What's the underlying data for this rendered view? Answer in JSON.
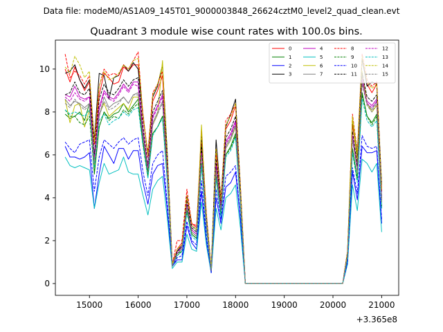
{
  "figure": {
    "suptitle": "Data file: modeM0/AS1A09_145T01_9000003848_26624cztM0_level2_quad_clean.evt",
    "offset_label": "+3.365e8"
  },
  "chart_data": {
    "type": "line",
    "title": "Quadrant 3 module wise count rates with 100.0s bins.",
    "xlabel": "",
    "ylabel": "",
    "x_offset": 336500000,
    "xlim": [
      14300,
      21350
    ],
    "ylim": [
      -0.55,
      11.35
    ],
    "xticks": [
      15000,
      16000,
      17000,
      18000,
      19000,
      20000,
      21000
    ],
    "xtick_labels": [
      "15000",
      "16000",
      "17000",
      "18000",
      "19000",
      "20000",
      "21000"
    ],
    "yticks": [
      0,
      2,
      4,
      6,
      8,
      10
    ],
    "ytick_labels": [
      "0",
      "2",
      "4",
      "6",
      "8",
      "10"
    ],
    "legend_position": "top-right",
    "grid": false,
    "x": [
      14500,
      14600,
      14700,
      14800,
      14900,
      15000,
      15100,
      15200,
      15300,
      15400,
      15500,
      15600,
      15700,
      15800,
      15900,
      16000,
      16100,
      16200,
      16300,
      16400,
      16500,
      16600,
      16700,
      16800,
      16900,
      17000,
      17100,
      17200,
      17300,
      17400,
      17500,
      17600,
      17700,
      17800,
      17900,
      18000,
      18100,
      18200,
      18300,
      18400,
      18500,
      18600,
      18700,
      18800,
      18900,
      19000,
      19100,
      19200,
      19300,
      19400,
      19500,
      19600,
      19700,
      19800,
      19900,
      20000,
      20100,
      20200,
      20300,
      20400,
      20500,
      20600,
      20700,
      20800,
      20900,
      21000
    ],
    "series": [
      {
        "name": "0",
        "color": "#ff0000",
        "dash": "solid",
        "values": [
          10.0,
          9.4,
          10.1,
          9.5,
          9.0,
          9.4,
          6.5,
          8.8,
          9.8,
          9.6,
          9.3,
          9.4,
          10.1,
          9.9,
          10.2,
          10.2,
          7.9,
          5.9,
          8.5,
          9.0,
          9.7,
          5.7,
          0.9,
          1.6,
          1.9,
          4.0,
          2.8,
          2.6,
          6.7,
          3.2,
          0.7,
          6.1,
          3.8,
          7.2,
          7.6,
          8.3,
          4.4,
          0.0,
          0.0,
          0.0,
          0.0,
          0.0,
          0.0,
          0.0,
          0.0,
          0.0,
          0.0,
          0.0,
          0.0,
          0.0,
          0.0,
          0.0,
          0.0,
          0.0,
          0.0,
          0.0,
          0.0,
          0.0,
          1.5,
          7.4,
          5.9,
          10.5,
          9.3,
          8.9,
          9.3,
          4.3
        ]
      },
      {
        "name": "1",
        "color": "#008000",
        "dash": "solid",
        "values": [
          7.9,
          7.7,
          7.8,
          8.0,
          7.6,
          8.4,
          5.1,
          7.3,
          8.0,
          7.7,
          7.9,
          8.0,
          8.4,
          8.0,
          8.3,
          8.6,
          6.6,
          5.0,
          7.0,
          7.3,
          7.8,
          4.8,
          0.8,
          1.4,
          1.5,
          3.4,
          2.3,
          2.1,
          5.6,
          2.7,
          0.6,
          5.0,
          3.3,
          6.0,
          6.4,
          7.0,
          3.7,
          0.0,
          0.0,
          0.0,
          0.0,
          0.0,
          0.0,
          0.0,
          0.0,
          0.0,
          0.0,
          0.0,
          0.0,
          0.0,
          0.0,
          0.0,
          0.0,
          0.0,
          0.0,
          0.0,
          0.0,
          0.0,
          1.2,
          6.3,
          4.9,
          8.9,
          7.8,
          7.5,
          7.9,
          3.6
        ]
      },
      {
        "name": "2",
        "color": "#0000ff",
        "dash": "solid",
        "values": [
          6.4,
          5.9,
          5.9,
          5.8,
          5.9,
          6.1,
          3.5,
          5.1,
          6.4,
          6.0,
          5.6,
          6.3,
          6.3,
          5.8,
          6.2,
          6.2,
          4.7,
          3.7,
          5.1,
          5.5,
          5.6,
          3.4,
          0.8,
          1.1,
          1.1,
          2.7,
          1.9,
          1.6,
          4.3,
          2.0,
          0.5,
          4.0,
          2.8,
          4.5,
          4.7,
          5.2,
          3.0,
          0.0,
          0.0,
          0.0,
          0.0,
          0.0,
          0.0,
          0.0,
          0.0,
          0.0,
          0.0,
          0.0,
          0.0,
          0.0,
          0.0,
          0.0,
          0.0,
          0.0,
          0.0,
          0.0,
          0.0,
          0.0,
          1.0,
          5.2,
          3.9,
          6.4,
          6.1,
          6.1,
          6.2,
          2.8
        ]
      },
      {
        "name": "3",
        "color": "#000000",
        "dash": "solid",
        "values": [
          9.8,
          9.9,
          10.2,
          9.5,
          9.1,
          9.5,
          6.7,
          9.8,
          9.7,
          8.6,
          9.6,
          9.7,
          10.2,
          9.9,
          10.3,
          10.0,
          7.8,
          6.0,
          8.7,
          9.2,
          10.2,
          6.0,
          0.9,
          1.5,
          1.8,
          4.1,
          2.7,
          2.5,
          6.9,
          3.2,
          0.7,
          6.7,
          3.9,
          7.3,
          7.9,
          8.6,
          4.5,
          0.0,
          0.0,
          0.0,
          0.0,
          0.0,
          0.0,
          0.0,
          0.0,
          0.0,
          0.0,
          0.0,
          0.0,
          0.0,
          0.0,
          0.0,
          0.0,
          0.0,
          0.0,
          0.0,
          0.0,
          0.0,
          1.5,
          7.6,
          6.0,
          10.5,
          9.2,
          9.4,
          9.3,
          4.6
        ]
      },
      {
        "name": "4",
        "color": "#bf00bf",
        "dash": "solid",
        "values": [
          8.8,
          8.7,
          9.2,
          8.7,
          8.6,
          8.7,
          5.9,
          8.2,
          9.0,
          8.7,
          8.6,
          8.9,
          9.3,
          9.0,
          9.4,
          9.4,
          7.1,
          5.4,
          7.8,
          8.3,
          8.8,
          5.3,
          0.9,
          1.5,
          1.7,
          3.7,
          2.5,
          2.3,
          6.2,
          2.9,
          0.7,
          5.6,
          3.5,
          6.6,
          7.0,
          7.6,
          4.0,
          0.0,
          0.0,
          0.0,
          0.0,
          0.0,
          0.0,
          0.0,
          0.0,
          0.0,
          0.0,
          0.0,
          0.0,
          0.0,
          0.0,
          0.0,
          0.0,
          0.0,
          0.0,
          0.0,
          0.0,
          0.0,
          1.4,
          6.9,
          5.4,
          9.6,
          8.5,
          8.3,
          8.6,
          3.9
        ]
      },
      {
        "name": "5",
        "color": "#00bfbf",
        "dash": "solid",
        "values": [
          5.9,
          5.5,
          5.4,
          5.5,
          5.4,
          5.3,
          3.5,
          4.7,
          5.6,
          5.1,
          5.2,
          5.3,
          5.9,
          5.2,
          5.1,
          5.1,
          4.1,
          3.2,
          4.4,
          4.8,
          5.0,
          3.0,
          0.7,
          1.0,
          1.0,
          2.3,
          1.6,
          1.5,
          3.8,
          1.8,
          0.5,
          3.5,
          2.5,
          4.0,
          4.2,
          4.6,
          2.6,
          0.0,
          0.0,
          0.0,
          0.0,
          0.0,
          0.0,
          0.0,
          0.0,
          0.0,
          0.0,
          0.0,
          0.0,
          0.0,
          0.0,
          0.0,
          0.0,
          0.0,
          0.0,
          0.0,
          0.0,
          0.0,
          0.9,
          4.6,
          3.4,
          5.8,
          5.6,
          5.2,
          5.6,
          2.4
        ]
      },
      {
        "name": "6",
        "color": "#bfbf00",
        "dash": "solid",
        "values": [
          8.6,
          7.5,
          8.3,
          8.4,
          7.3,
          8.1,
          5.5,
          7.9,
          8.4,
          7.8,
          8.0,
          8.2,
          8.4,
          8.1,
          8.7,
          8.7,
          6.9,
          5.3,
          7.4,
          7.9,
          10.4,
          5.0,
          0.9,
          1.4,
          1.6,
          3.6,
          2.4,
          2.2,
          7.4,
          2.8,
          0.6,
          5.3,
          3.4,
          6.3,
          6.7,
          7.3,
          3.9,
          0.0,
          0.0,
          0.0,
          0.0,
          0.0,
          0.0,
          0.0,
          0.0,
          0.0,
          0.0,
          0.0,
          0.0,
          0.0,
          0.0,
          0.0,
          0.0,
          0.0,
          0.0,
          0.0,
          0.0,
          0.0,
          1.3,
          7.7,
          5.7,
          9.9,
          8.4,
          8.0,
          8.3,
          3.9
        ]
      },
      {
        "name": "7",
        "color": "#808080",
        "dash": "solid",
        "values": [
          8.6,
          8.3,
          8.5,
          8.4,
          8.2,
          8.4,
          5.7,
          7.8,
          8.7,
          8.2,
          8.4,
          8.5,
          8.7,
          8.4,
          8.8,
          8.9,
          6.9,
          5.3,
          7.5,
          8.0,
          8.5,
          5.1,
          0.8,
          1.4,
          1.6,
          3.6,
          2.4,
          2.2,
          6.1,
          2.8,
          0.6,
          5.4,
          3.4,
          6.4,
          6.8,
          7.4,
          3.9,
          0.0,
          0.0,
          0.0,
          0.0,
          0.0,
          0.0,
          0.0,
          0.0,
          0.0,
          0.0,
          0.0,
          0.0,
          0.0,
          0.0,
          0.0,
          0.0,
          0.0,
          0.0,
          0.0,
          0.0,
          0.0,
          1.3,
          6.8,
          5.3,
          9.4,
          8.4,
          8.1,
          8.5,
          3.8
        ]
      },
      {
        "name": "8",
        "color": "#ff0000",
        "dash": "dashed",
        "values": [
          10.7,
          9.6,
          9.9,
          9.7,
          9.3,
          9.7,
          6.5,
          9.2,
          10.0,
          9.7,
          9.8,
          9.7,
          10.2,
          10.0,
          10.4,
          10.8,
          7.7,
          6.1,
          8.9,
          9.3,
          9.9,
          5.8,
          0.9,
          2.0,
          2.0,
          4.4,
          2.8,
          2.7,
          7.1,
          3.3,
          0.7,
          6.3,
          4.0,
          7.6,
          7.9,
          8.4,
          4.6,
          0.0,
          0.0,
          0.0,
          0.0,
          0.0,
          0.0,
          0.0,
          0.0,
          0.0,
          0.0,
          0.0,
          0.0,
          0.0,
          0.0,
          0.0,
          0.0,
          0.0,
          0.0,
          0.0,
          0.0,
          0.0,
          1.5,
          7.9,
          6.2,
          10.7,
          9.5,
          9.2,
          9.4,
          4.4
        ]
      },
      {
        "name": "9",
        "color": "#008000",
        "dash": "dashed",
        "values": [
          8.1,
          7.8,
          7.8,
          7.5,
          7.4,
          7.8,
          5.2,
          7.3,
          8.0,
          7.6,
          7.8,
          7.7,
          8.1,
          7.9,
          8.2,
          8.4,
          6.5,
          5.2,
          7.0,
          7.3,
          7.8,
          4.8,
          0.8,
          1.3,
          1.5,
          3.4,
          2.3,
          2.1,
          5.6,
          2.6,
          0.6,
          5.0,
          3.2,
          6.0,
          6.3,
          6.9,
          3.7,
          0.0,
          0.0,
          0.0,
          0.0,
          0.0,
          0.0,
          0.0,
          0.0,
          0.0,
          0.0,
          0.0,
          0.0,
          0.0,
          0.0,
          0.0,
          0.0,
          0.0,
          0.0,
          0.0,
          0.0,
          0.0,
          1.2,
          6.2,
          4.8,
          8.8,
          7.8,
          7.4,
          7.8,
          3.5
        ]
      },
      {
        "name": "10",
        "color": "#0000ff",
        "dash": "dashed",
        "values": [
          6.6,
          6.3,
          6.1,
          6.5,
          6.6,
          6.7,
          4.3,
          5.9,
          6.7,
          6.5,
          6.3,
          6.6,
          6.8,
          6.5,
          6.7,
          6.8,
          5.2,
          4.1,
          5.6,
          6.0,
          6.2,
          3.7,
          0.8,
          1.2,
          1.3,
          2.9,
          2.0,
          1.8,
          4.8,
          2.2,
          0.5,
          4.4,
          3.0,
          5.0,
          5.2,
          5.5,
          3.1,
          0.0,
          0.0,
          0.0,
          0.0,
          0.0,
          0.0,
          0.0,
          0.0,
          0.0,
          0.0,
          0.0,
          0.0,
          0.0,
          0.0,
          0.0,
          0.0,
          0.0,
          0.0,
          0.0,
          0.0,
          0.0,
          1.0,
          5.4,
          4.2,
          6.9,
          6.4,
          6.3,
          6.4,
          3.0
        ]
      },
      {
        "name": "11",
        "color": "#000000",
        "dash": "dashed",
        "values": [
          8.8,
          8.9,
          9.4,
          8.9,
          8.8,
          9.1,
          6.0,
          8.6,
          9.3,
          8.9,
          8.8,
          9.1,
          9.5,
          9.2,
          9.5,
          9.6,
          7.3,
          5.5,
          8.0,
          8.5,
          9.0,
          5.4,
          0.9,
          1.5,
          1.7,
          3.8,
          2.6,
          2.4,
          6.4,
          3.0,
          0.7,
          5.8,
          3.6,
          6.8,
          7.2,
          7.8,
          4.1,
          0.0,
          0.0,
          0.0,
          0.0,
          0.0,
          0.0,
          0.0,
          0.0,
          0.0,
          0.0,
          0.0,
          0.0,
          0.0,
          0.0,
          0.0,
          0.0,
          0.0,
          0.0,
          0.0,
          0.0,
          0.0,
          1.4,
          7.1,
          5.5,
          9.8,
          8.7,
          8.5,
          8.8,
          4.0
        ]
      },
      {
        "name": "12",
        "color": "#bf00bf",
        "dash": "dashed",
        "values": [
          8.7,
          8.5,
          8.9,
          8.6,
          8.5,
          8.7,
          5.8,
          8.1,
          8.9,
          8.6,
          8.5,
          8.8,
          9.2,
          8.9,
          9.3,
          9.2,
          7.0,
          5.4,
          7.7,
          8.2,
          8.7,
          5.2,
          0.9,
          1.4,
          1.7,
          3.7,
          2.5,
          2.3,
          6.1,
          2.9,
          0.6,
          5.5,
          3.5,
          6.5,
          6.9,
          7.5,
          4.0,
          0.0,
          0.0,
          0.0,
          0.0,
          0.0,
          0.0,
          0.0,
          0.0,
          0.0,
          0.0,
          0.0,
          0.0,
          0.0,
          0.0,
          0.0,
          0.0,
          0.0,
          0.0,
          0.0,
          0.0,
          0.0,
          1.3,
          6.9,
          5.3,
          9.5,
          8.4,
          8.2,
          8.5,
          3.9
        ]
      },
      {
        "name": "13",
        "color": "#00bfbf",
        "dash": "dashed",
        "values": [
          8.1,
          7.9,
          8.0,
          7.9,
          7.8,
          8.1,
          5.4,
          7.6,
          7.9,
          7.4,
          7.6,
          7.7,
          8.0,
          7.8,
          8.1,
          8.2,
          6.4,
          4.9,
          6.9,
          7.3,
          7.7,
          4.7,
          0.8,
          1.3,
          1.5,
          3.3,
          2.2,
          2.0,
          5.5,
          2.6,
          0.6,
          4.9,
          3.1,
          5.9,
          6.2,
          6.8,
          3.6,
          0.0,
          0.0,
          0.0,
          0.0,
          0.0,
          0.0,
          0.0,
          0.0,
          0.0,
          0.0,
          0.0,
          0.0,
          0.0,
          0.0,
          0.0,
          0.0,
          0.0,
          0.0,
          0.0,
          0.0,
          0.0,
          1.2,
          6.1,
          4.7,
          8.6,
          7.6,
          7.3,
          7.6,
          3.5
        ]
      },
      {
        "name": "14",
        "color": "#bfbf00",
        "dash": "dashed",
        "values": [
          10.1,
          9.8,
          10.6,
          10.2,
          9.6,
          9.9,
          6.6,
          9.2,
          9.9,
          9.5,
          9.6,
          9.8,
          10.2,
          10.0,
          10.4,
          10.5,
          7.9,
          6.0,
          8.8,
          9.3,
          10.2,
          5.8,
          0.9,
          1.6,
          1.8,
          4.1,
          2.7,
          2.5,
          7.1,
          3.2,
          0.7,
          6.3,
          3.9,
          7.4,
          7.8,
          8.4,
          4.5,
          0.0,
          0.0,
          0.0,
          0.0,
          0.0,
          0.0,
          0.0,
          0.0,
          0.0,
          0.0,
          0.0,
          0.0,
          0.0,
          0.0,
          0.0,
          0.0,
          0.0,
          0.0,
          0.0,
          0.0,
          0.0,
          1.5,
          7.8,
          6.1,
          10.6,
          9.4,
          9.1,
          9.3,
          4.4
        ]
      },
      {
        "name": "15",
        "color": "#808080",
        "dash": "dashed",
        "values": [
          8.4,
          8.2,
          8.6,
          8.3,
          8.1,
          8.3,
          5.6,
          7.8,
          8.5,
          8.1,
          8.2,
          8.4,
          8.7,
          8.4,
          8.8,
          8.8,
          6.8,
          5.2,
          7.4,
          7.9,
          8.4,
          5.0,
          0.8,
          1.4,
          1.6,
          3.6,
          2.4,
          2.2,
          6.0,
          2.8,
          0.6,
          5.3,
          3.4,
          6.3,
          6.7,
          7.3,
          3.9,
          0.0,
          0.0,
          0.0,
          0.0,
          0.0,
          0.0,
          0.0,
          0.0,
          0.0,
          0.0,
          0.0,
          0.0,
          0.0,
          0.0,
          0.0,
          0.0,
          0.0,
          0.0,
          0.0,
          0.0,
          0.0,
          1.3,
          6.7,
          5.2,
          9.3,
          8.3,
          8.0,
          8.4,
          3.8
        ]
      }
    ]
  }
}
